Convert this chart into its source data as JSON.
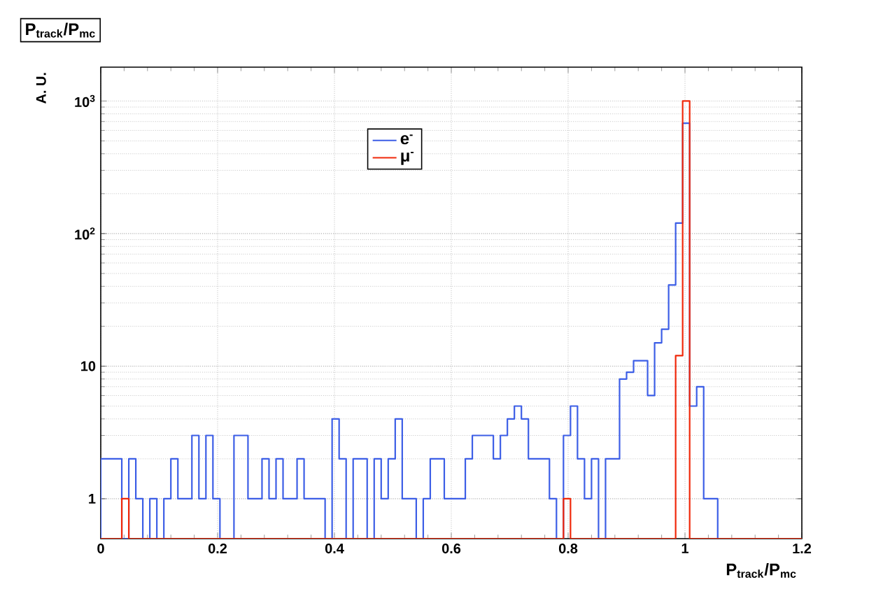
{
  "chart_data": {
    "type": "histogram",
    "title": "P$_{track}$/P$_{mc}$",
    "xlabel": "P$_{track}$/P$_{mc}$",
    "ylabel": "A. U.",
    "bins": [
      0,
      0.012,
      0.024,
      0.036,
      0.048,
      0.06,
      0.072,
      0.084,
      0.096,
      0.108,
      0.12,
      0.132,
      0.144,
      0.156,
      0.168,
      0.18,
      0.192,
      0.204,
      0.216,
      0.228,
      0.24,
      0.252,
      0.264,
      0.276,
      0.288,
      0.3,
      0.312,
      0.324,
      0.336,
      0.348,
      0.36,
      0.372,
      0.384,
      0.396,
      0.408,
      0.42,
      0.432,
      0.444,
      0.456,
      0.468,
      0.48,
      0.492,
      0.504,
      0.516,
      0.528,
      0.54,
      0.552,
      0.564,
      0.576,
      0.588,
      0.6,
      0.612,
      0.624,
      0.636,
      0.648,
      0.66,
      0.672,
      0.684,
      0.696,
      0.708,
      0.72,
      0.732,
      0.744,
      0.756,
      0.768,
      0.78,
      0.792,
      0.804,
      0.816,
      0.828,
      0.84,
      0.852,
      0.864,
      0.876,
      0.888,
      0.9,
      0.912,
      0.924,
      0.936,
      0.948,
      0.96,
      0.972,
      0.984,
      0.996,
      1.008,
      1.02,
      1.032,
      1.044,
      1.056,
      1.068,
      1.08,
      1.092,
      1.104,
      1.116,
      1.128,
      1.14,
      1.152,
      1.164,
      1.176,
      1.188,
      1.2
    ],
    "series": [
      {
        "name": "e$^{-}$",
        "color": "#3c5ee6",
        "values": [
          2,
          2,
          2,
          null,
          2,
          1,
          null,
          1,
          null,
          1,
          2,
          1,
          1,
          3,
          1,
          3,
          1,
          null,
          null,
          3,
          3,
          1,
          1,
          2,
          1,
          2,
          1,
          1,
          2,
          1,
          1,
          1,
          null,
          4,
          2,
          null,
          2,
          2,
          null,
          2,
          1,
          2,
          4,
          1,
          1,
          null,
          1,
          2,
          2,
          1,
          1,
          1,
          2,
          3,
          3,
          3,
          2,
          3,
          4,
          5,
          4,
          2,
          2,
          2,
          1,
          null,
          3,
          5,
          2,
          1,
          2,
          null,
          2,
          2,
          8,
          9,
          11,
          11,
          6,
          15,
          19,
          41,
          120,
          680,
          5,
          7,
          1,
          1,
          null,
          null,
          null,
          null,
          null,
          null,
          null,
          null,
          null,
          null,
          null,
          null
        ]
      },
      {
        "name": "μ$^{-}$",
        "color": "#f0280a",
        "values": [
          null,
          null,
          null,
          1,
          null,
          null,
          null,
          null,
          null,
          null,
          null,
          null,
          null,
          null,
          null,
          null,
          null,
          null,
          null,
          null,
          null,
          null,
          null,
          null,
          null,
          null,
          null,
          null,
          null,
          null,
          null,
          null,
          null,
          null,
          null,
          null,
          null,
          null,
          null,
          null,
          null,
          null,
          null,
          null,
          null,
          null,
          null,
          null,
          null,
          null,
          null,
          null,
          null,
          null,
          null,
          null,
          null,
          null,
          null,
          null,
          null,
          null,
          null,
          null,
          null,
          null,
          1,
          null,
          null,
          null,
          null,
          null,
          null,
          null,
          null,
          null,
          null,
          null,
          null,
          null,
          null,
          null,
          12,
          1000,
          null,
          null,
          null,
          null,
          null,
          null,
          null,
          null,
          null,
          null,
          null,
          null,
          null,
          null,
          null,
          null
        ]
      }
    ],
    "xlim": [
      0,
      1.2
    ],
    "ylim": [
      0.5,
      1800
    ],
    "log": true,
    "xticks": [
      0,
      0.2,
      0.4,
      0.6,
      0.8,
      1,
      1.2
    ],
    "yticks": [
      {
        "value": 1,
        "label": "1"
      },
      {
        "value": 10,
        "label": "10"
      },
      {
        "value": 100,
        "label": "10$^{2}$"
      },
      {
        "value": 1000,
        "label": "10$^{3}$"
      }
    ],
    "grid": true,
    "legend": "top"
  }
}
